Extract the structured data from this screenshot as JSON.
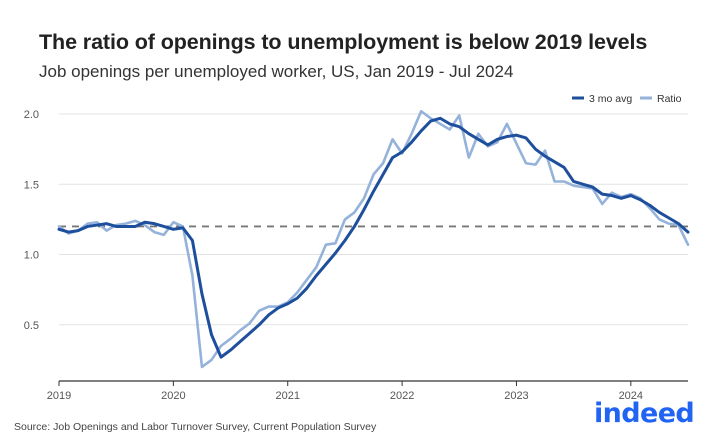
{
  "title": "The ratio of openings to unemployment is below 2019 levels",
  "subtitle": "Job openings per unemployed worker, US, Jan 2019 - Jul 2024",
  "source": "Source: Job Openings and Labor Turnover Survey, Current Population Survey",
  "logo_text": "indeed",
  "colors": {
    "avg": "#1e4f9c",
    "ratio": "#94b2da",
    "reference": "#777777",
    "grid": "#e3e3e3",
    "logo": "#2164f3"
  },
  "chart_data": {
    "type": "line",
    "title": "The ratio of openings to unemployment is below 2019 levels",
    "xlabel": "",
    "ylabel": "",
    "xlim": [
      "2019-01",
      "2024-07"
    ],
    "ylim": [
      0.1,
      2.1
    ],
    "y_ticks": [
      "0.5",
      "1.0",
      "1.5",
      "2.0"
    ],
    "x_ticks": [
      "2019",
      "2020",
      "2021",
      "2022",
      "2023",
      "2024"
    ],
    "reference_line": 1.2,
    "legend_position": "top-right",
    "grid": true,
    "x": [
      "2019-01",
      "2019-02",
      "2019-03",
      "2019-04",
      "2019-05",
      "2019-06",
      "2019-07",
      "2019-08",
      "2019-09",
      "2019-10",
      "2019-11",
      "2019-12",
      "2020-01",
      "2020-02",
      "2020-03",
      "2020-04",
      "2020-05",
      "2020-06",
      "2020-07",
      "2020-08",
      "2020-09",
      "2020-10",
      "2020-11",
      "2020-12",
      "2021-01",
      "2021-02",
      "2021-03",
      "2021-04",
      "2021-05",
      "2021-06",
      "2021-07",
      "2021-08",
      "2021-09",
      "2021-10",
      "2021-11",
      "2021-12",
      "2022-01",
      "2022-02",
      "2022-03",
      "2022-04",
      "2022-05",
      "2022-06",
      "2022-07",
      "2022-08",
      "2022-09",
      "2022-10",
      "2022-11",
      "2022-12",
      "2023-01",
      "2023-02",
      "2023-03",
      "2023-04",
      "2023-05",
      "2023-06",
      "2023-07",
      "2023-08",
      "2023-09",
      "2023-10",
      "2023-11",
      "2023-12",
      "2024-01",
      "2024-02",
      "2024-03",
      "2024-04",
      "2024-05",
      "2024-06",
      "2024-07"
    ],
    "series": [
      {
        "name": "3 mo avg",
        "values": [
          1.18,
          1.16,
          1.17,
          1.2,
          1.21,
          1.22,
          1.2,
          1.2,
          1.2,
          1.23,
          1.22,
          1.2,
          1.18,
          1.19,
          1.1,
          0.72,
          0.43,
          0.27,
          0.32,
          0.38,
          0.44,
          0.5,
          0.57,
          0.62,
          0.65,
          0.69,
          0.76,
          0.85,
          0.93,
          1.01,
          1.1,
          1.2,
          1.32,
          1.45,
          1.57,
          1.69,
          1.73,
          1.8,
          1.88,
          1.95,
          1.97,
          1.93,
          1.91,
          1.86,
          1.82,
          1.78,
          1.82,
          1.84,
          1.85,
          1.83,
          1.75,
          1.7,
          1.66,
          1.62,
          1.52,
          1.5,
          1.48,
          1.43,
          1.42,
          1.4,
          1.42,
          1.39,
          1.35,
          1.3,
          1.26,
          1.22,
          1.16
        ]
      },
      {
        "name": "Ratio",
        "values": [
          1.2,
          1.15,
          1.17,
          1.22,
          1.23,
          1.17,
          1.21,
          1.22,
          1.24,
          1.21,
          1.16,
          1.14,
          1.23,
          1.2,
          0.85,
          0.2,
          0.25,
          0.35,
          0.4,
          0.46,
          0.51,
          0.6,
          0.63,
          0.63,
          0.66,
          0.73,
          0.82,
          0.91,
          1.07,
          1.08,
          1.25,
          1.3,
          1.4,
          1.57,
          1.65,
          1.82,
          1.72,
          1.86,
          2.02,
          1.97,
          1.93,
          1.89,
          1.99,
          1.69,
          1.86,
          1.77,
          1.8,
          1.93,
          1.79,
          1.65,
          1.64,
          1.74,
          1.52,
          1.52,
          1.49,
          1.48,
          1.47,
          1.36,
          1.44,
          1.41,
          1.43,
          1.4,
          1.33,
          1.25,
          1.22,
          1.21,
          1.07
        ]
      }
    ]
  }
}
